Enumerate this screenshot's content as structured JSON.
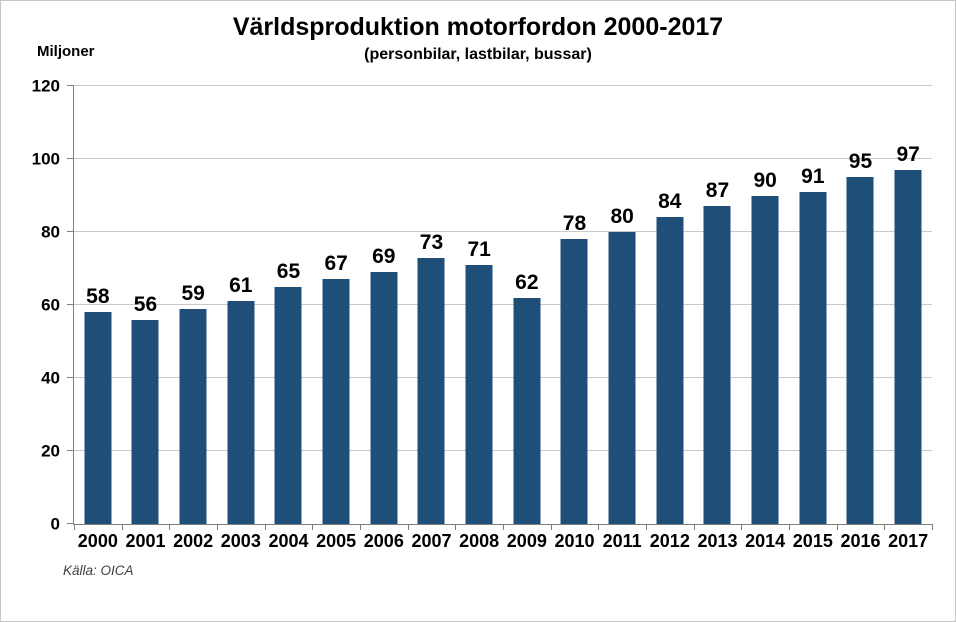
{
  "chart_data": {
    "type": "bar",
    "title": "Världsproduktion motorfordon 2000-2017",
    "subtitle": "(personbilar, lastbilar, bussar)",
    "ylabel": "Miljoner",
    "source": "Källa: OICA",
    "categories": [
      "2000",
      "2001",
      "2002",
      "2003",
      "2004",
      "2005",
      "2006",
      "2007",
      "2008",
      "2009",
      "2010",
      "2011",
      "2012",
      "2013",
      "2014",
      "2015",
      "2016",
      "2017"
    ],
    "values": [
      58,
      56,
      59,
      61,
      65,
      67,
      69,
      73,
      71,
      62,
      78,
      80,
      84,
      87,
      90,
      91,
      95,
      97
    ],
    "ylim": [
      0,
      120
    ],
    "yticks": [
      0,
      20,
      40,
      60,
      80,
      100,
      120
    ],
    "grid": true,
    "legend": false,
    "bar_color": "#1f4e79",
    "gridline_color": "#c9c9c9",
    "axis_color": "#7f7f7f"
  }
}
